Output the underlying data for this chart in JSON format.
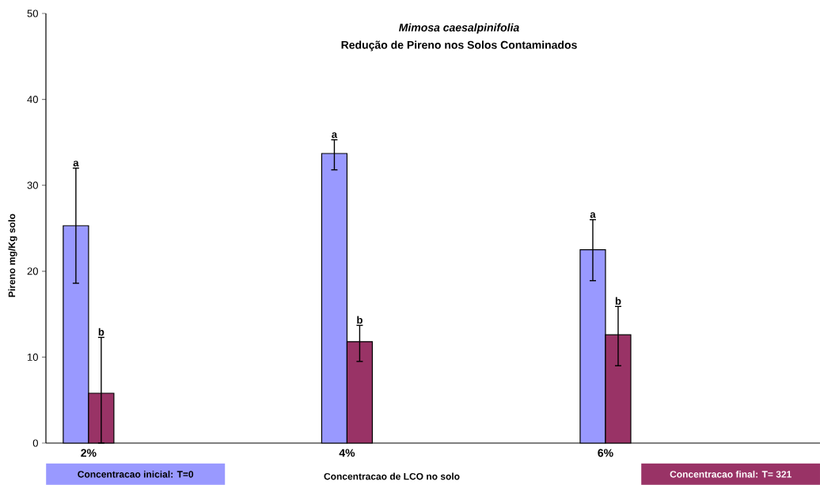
{
  "chart_data": {
    "type": "bar",
    "title": "*Mimosa caesalpinifolia*",
    "subtitle": "Redução de Pireno nos Solos Contaminados",
    "xlabel": "Concentracao  de LCO no solo",
    "ylabel": "Pireno mg/Kg solo",
    "categories": [
      "2%",
      "4%",
      "6%"
    ],
    "series": [
      {
        "name": "Concentracao  inicial: T=0",
        "color": "#9999ff",
        "values": [
          25.3,
          33.7,
          22.5
        ],
        "errors": [
          [
            18.6,
            32.0
          ],
          [
            31.8,
            35.3
          ],
          [
            18.9,
            26.0
          ]
        ]
      },
      {
        "name": "Concentracao  final: T= 321",
        "color": "#993366",
        "values": [
          5.8,
          11.8,
          12.6
        ],
        "errors": [
          [
            0,
            12.3
          ],
          [
            9.5,
            13.7
          ],
          [
            9.0,
            15.9
          ]
        ]
      }
    ],
    "annotations": [
      "a",
      "b",
      "a",
      "b",
      "a",
      "b"
    ],
    "ylim": [
      0,
      50
    ],
    "yticks": [
      0,
      10,
      20,
      30,
      40,
      50
    ],
    "legend": "bottom"
  }
}
